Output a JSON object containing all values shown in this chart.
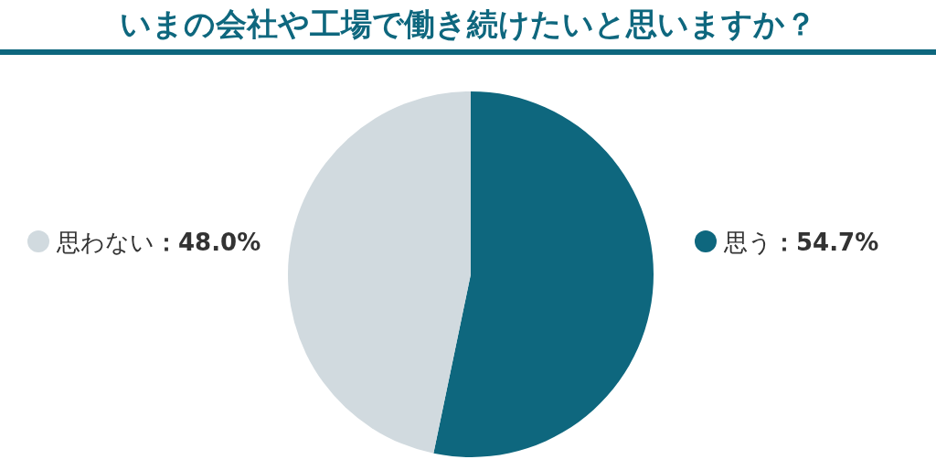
{
  "chart_data": {
    "type": "pie",
    "title": "いまの会社や工場で働き続けたいと思いますか？",
    "categories": [
      "思う",
      "思わない"
    ],
    "values": [
      54.7,
      48.0
    ],
    "colors": [
      "#0e677e",
      "#d1dadf"
    ],
    "value_labels": [
      "：54.7%",
      "：48.0%"
    ],
    "legend": "left"
  }
}
